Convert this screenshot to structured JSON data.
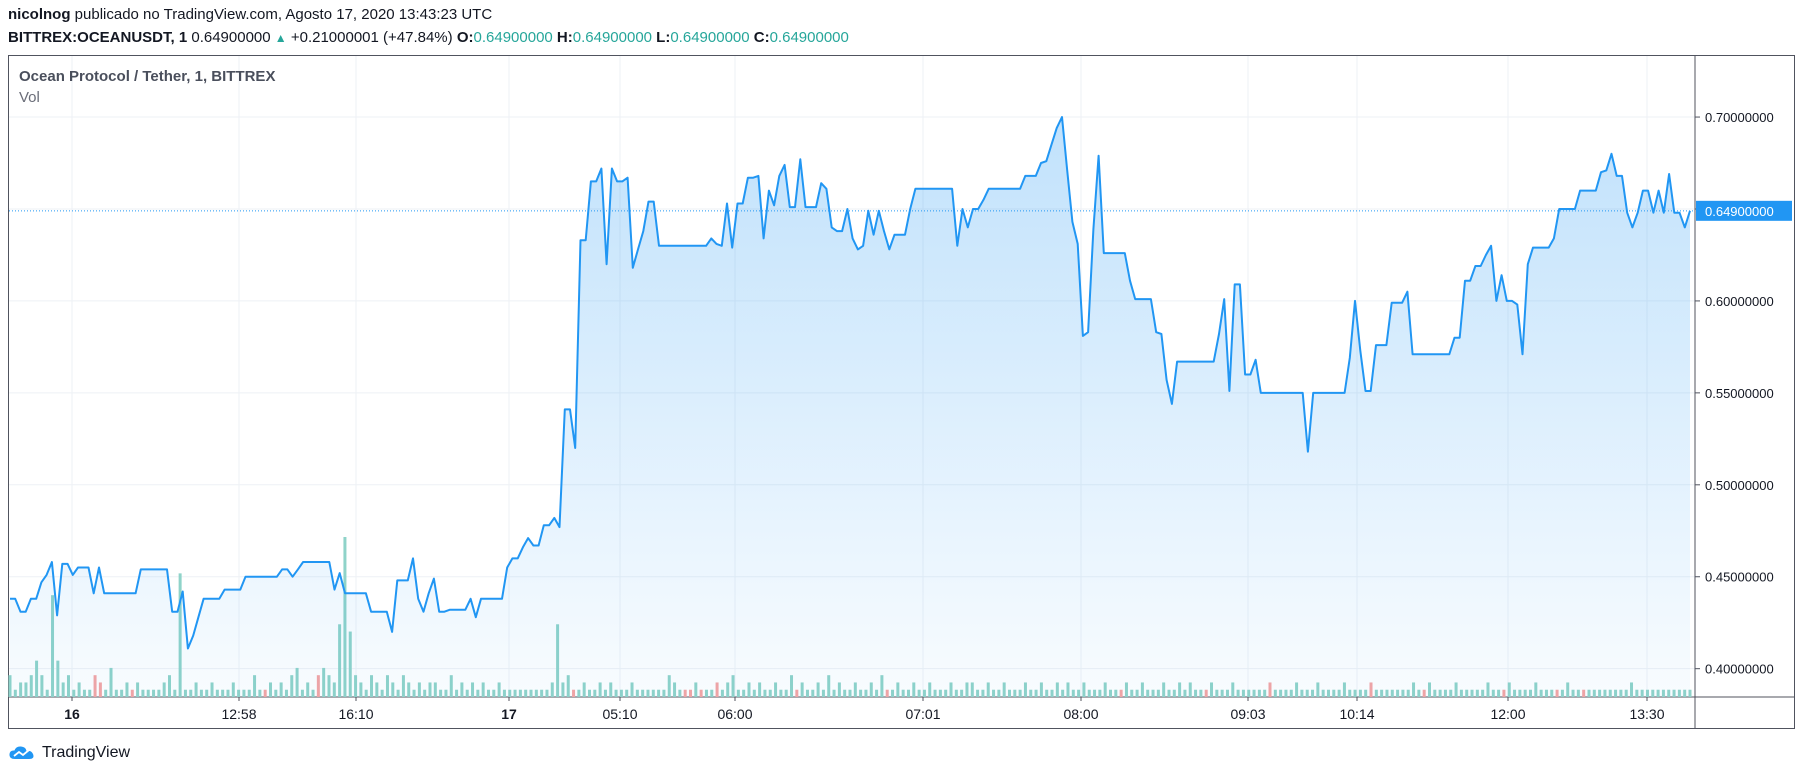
{
  "header": {
    "author": "nicolnog",
    "published_text": "publicado no TradingView.com, Agosto 17, 2020 13:43:23 UTC",
    "symbol": "BITTREX:OCEANUSDT, 1",
    "last": "0.64900000",
    "change": "+0.21000001 (+47.84%)",
    "o_label": "O:",
    "o_value": "0.64900000",
    "h_label": "H:",
    "h_value": "0.64900000",
    "l_label": "L:",
    "l_value": "0.64900000",
    "c_label": "C:",
    "c_value": "0.64900000"
  },
  "legend": {
    "title": "Ocean Protocol / Tether, 1, BITTREX",
    "vol": "Vol"
  },
  "footer": {
    "brand": "TradingView"
  },
  "colors": {
    "line": "#2196f3",
    "vol_up": "#8fd3c9",
    "vol_down": "#f4a4a4",
    "positive": "#26a69a"
  },
  "chart_data": {
    "type": "area",
    "price_label": "0.64900000",
    "ylim": [
      0.3846,
      0.7332
    ],
    "y_ticks": [
      "0.70000000",
      "0.65000000",
      "0.60000000",
      "0.55000000",
      "0.50000000",
      "0.45000000",
      "0.40000000"
    ],
    "x_ticks": [
      "16",
      "12:58",
      "16:10",
      "17",
      "05:10",
      "06:00",
      "07:01",
      "08:00",
      "09:03",
      "10:14",
      "12:00",
      "13:30"
    ],
    "series": [
      {
        "values": [
          0.438,
          0.438,
          0.431,
          0.431,
          0.438,
          0.438,
          0.447,
          0.451,
          0.458,
          0.429,
          0.457,
          0.457,
          0.451,
          0.455,
          0.455,
          0.455,
          0.441,
          0.455,
          0.441,
          0.441,
          0.441,
          0.441,
          0.441,
          0.441,
          0.441,
          0.454,
          0.454,
          0.454,
          0.454,
          0.454,
          0.454,
          0.431,
          0.431,
          0.442,
          0.411,
          0.418,
          0.428,
          0.438,
          0.438,
          0.438,
          0.438,
          0.443,
          0.443,
          0.443,
          0.443,
          0.45,
          0.45,
          0.45,
          0.45,
          0.45,
          0.45,
          0.45,
          0.454,
          0.454,
          0.45,
          0.454,
          0.458,
          0.458,
          0.458,
          0.458,
          0.458,
          0.458,
          0.443,
          0.452,
          0.441,
          0.441,
          0.441,
          0.441,
          0.441,
          0.431,
          0.431,
          0.431,
          0.431,
          0.42,
          0.448,
          0.448,
          0.448,
          0.46,
          0.438,
          0.431,
          0.441,
          0.449,
          0.431,
          0.431,
          0.432,
          0.432,
          0.432,
          0.432,
          0.438,
          0.428,
          0.438,
          0.438,
          0.438,
          0.438,
          0.438,
          0.455,
          0.46,
          0.46,
          0.466,
          0.471,
          0.467,
          0.467,
          0.478,
          0.478,
          0.482,
          0.477,
          0.541,
          0.541,
          0.52,
          0.633,
          0.633,
          0.665,
          0.665,
          0.672,
          0.62,
          0.672,
          0.665,
          0.665,
          0.667,
          0.618,
          0.628,
          0.638,
          0.654,
          0.654,
          0.63,
          0.63,
          0.63,
          0.63,
          0.63,
          0.63,
          0.63,
          0.63,
          0.63,
          0.63,
          0.634,
          0.631,
          0.63,
          0.653,
          0.629,
          0.653,
          0.653,
          0.667,
          0.667,
          0.668,
          0.634,
          0.66,
          0.652,
          0.668,
          0.674,
          0.651,
          0.651,
          0.677,
          0.651,
          0.651,
          0.651,
          0.664,
          0.661,
          0.64,
          0.638,
          0.638,
          0.65,
          0.634,
          0.628,
          0.63,
          0.649,
          0.636,
          0.649,
          0.638,
          0.628,
          0.636,
          0.636,
          0.636,
          0.65,
          0.661,
          0.661,
          0.661,
          0.661,
          0.661,
          0.661,
          0.661,
          0.661,
          0.63,
          0.65,
          0.64,
          0.65,
          0.65,
          0.655,
          0.661,
          0.661,
          0.661,
          0.661,
          0.661,
          0.661,
          0.661,
          0.668,
          0.668,
          0.668,
          0.675,
          0.676,
          0.685,
          0.694,
          0.7,
          0.671,
          0.643,
          0.631,
          0.581,
          0.583,
          0.639,
          0.679,
          0.626,
          0.626,
          0.626,
          0.626,
          0.626,
          0.611,
          0.601,
          0.601,
          0.601,
          0.601,
          0.583,
          0.582,
          0.557,
          0.544,
          0.567,
          0.567,
          0.567,
          0.567,
          0.567,
          0.567,
          0.567,
          0.567,
          0.582,
          0.601,
          0.551,
          0.609,
          0.609,
          0.56,
          0.56,
          0.568,
          0.55,
          0.55,
          0.55,
          0.55,
          0.55,
          0.55,
          0.55,
          0.55,
          0.55,
          0.518,
          0.55,
          0.55,
          0.55,
          0.55,
          0.55,
          0.55,
          0.55,
          0.569,
          0.6,
          0.573,
          0.551,
          0.551,
          0.576,
          0.576,
          0.576,
          0.599,
          0.599,
          0.599,
          0.605,
          0.571,
          0.571,
          0.571,
          0.571,
          0.571,
          0.571,
          0.571,
          0.571,
          0.58,
          0.58,
          0.611,
          0.611,
          0.619,
          0.619,
          0.625,
          0.63,
          0.6,
          0.614,
          0.6,
          0.6,
          0.598,
          0.571,
          0.62,
          0.629,
          0.629,
          0.629,
          0.629,
          0.634,
          0.65,
          0.65,
          0.65,
          0.65,
          0.66,
          0.66,
          0.66,
          0.66,
          0.67,
          0.671,
          0.68,
          0.668,
          0.668,
          0.648,
          0.64,
          0.648,
          0.66,
          0.66,
          0.648,
          0.66,
          0.648,
          0.669,
          0.648,
          0.648,
          0.64,
          0.649
        ]
      }
    ],
    "volume": {
      "values": [
        0.3,
        0.1,
        0.2,
        0.2,
        0.3,
        0.5,
        0.3,
        0.1,
        1.4,
        0.5,
        0.2,
        0.3,
        0.1,
        0.2,
        0.1,
        0.1,
        0.3,
        0.2,
        0.1,
        0.4,
        0.1,
        0.1,
        0.2,
        0.1,
        0.2,
        0.1,
        0.1,
        0.1,
        0.1,
        0.2,
        0.3,
        0.1,
        1.7,
        0.1,
        0.1,
        0.2,
        0.1,
        0.1,
        0.2,
        0.1,
        0.1,
        0.1,
        0.2,
        0.1,
        0.1,
        0.1,
        0.3,
        0.1,
        0.1,
        0.2,
        0.1,
        0.2,
        0.1,
        0.3,
        0.4,
        0.1,
        0.2,
        0.1,
        0.3,
        0.4,
        0.3,
        0.2,
        1.0,
        2.2,
        0.9,
        0.3,
        0.2,
        0.1,
        0.3,
        0.2,
        0.1,
        0.3,
        0.2,
        0.1,
        0.3,
        0.2,
        0.1,
        0.2,
        0.1,
        0.2,
        0.2,
        0.1,
        0.1,
        0.3,
        0.1,
        0.2,
        0.1,
        0.2,
        0.1,
        0.2,
        0.1,
        0.1,
        0.2,
        0.1,
        0.1,
        0.1,
        0.1,
        0.1,
        0.1,
        0.1,
        0.1,
        0.1,
        0.2,
        1.0,
        0.2,
        0.3,
        0.1,
        0.1,
        0.2,
        0.1,
        0.1,
        0.2,
        0.1,
        0.2,
        0.1,
        0.1,
        0.1,
        0.2,
        0.1,
        0.1,
        0.1,
        0.1,
        0.1,
        0.1,
        0.3,
        0.2,
        0.1,
        0.1,
        0.1,
        0.2,
        0.1,
        0.1,
        0.1,
        0.2,
        0.1,
        0.2,
        0.3,
        0.1,
        0.1,
        0.2,
        0.1,
        0.2,
        0.1,
        0.1,
        0.2,
        0.1,
        0.1,
        0.3,
        0.1,
        0.2,
        0.1,
        0.1,
        0.2,
        0.1,
        0.3,
        0.1,
        0.2,
        0.1,
        0.1,
        0.2,
        0.1,
        0.1,
        0.2,
        0.1,
        0.3,
        0.1,
        0.1,
        0.2,
        0.1,
        0.1,
        0.2,
        0.1,
        0.1,
        0.2,
        0.1,
        0.1,
        0.1,
        0.2,
        0.1,
        0.1,
        0.2,
        0.2,
        0.1,
        0.1,
        0.2,
        0.1,
        0.1,
        0.2,
        0.1,
        0.1,
        0.1,
        0.2,
        0.1,
        0.1,
        0.2,
        0.1,
        0.1,
        0.2,
        0.1,
        0.2,
        0.1,
        0.1,
        0.2,
        0.1,
        0.1,
        0.1,
        0.2,
        0.1,
        0.1,
        0.1,
        0.2,
        0.1,
        0.1,
        0.2,
        0.1,
        0.1,
        0.1,
        0.2,
        0.1,
        0.1,
        0.2,
        0.1,
        0.2,
        0.1,
        0.1,
        0.1,
        0.2,
        0.1,
        0.1,
        0.1,
        0.2,
        0.1,
        0.1,
        0.1,
        0.1,
        0.1,
        0.1,
        0.2,
        0.1,
        0.1,
        0.1,
        0.1,
        0.2,
        0.1,
        0.1,
        0.1,
        0.2,
        0.1,
        0.1,
        0.1,
        0.1,
        0.2,
        0.1,
        0.1,
        0.1,
        0.1,
        0.2,
        0.1,
        0.1,
        0.1,
        0.1,
        0.1,
        0.1,
        0.1,
        0.2,
        0.1,
        0.1,
        0.2,
        0.1,
        0.1,
        0.1,
        0.1,
        0.2,
        0.1,
        0.1,
        0.1,
        0.1,
        0.1,
        0.2,
        0.1,
        0.1,
        0.1,
        0.2,
        0.1,
        0.1,
        0.1,
        0.1,
        0.2,
        0.1,
        0.1,
        0.1,
        0.1,
        0.1,
        0.2,
        0.1,
        0.1,
        0.1,
        0.1,
        0.1,
        0.1,
        0.1,
        0.1,
        0.1,
        0.1,
        0.1,
        0.2,
        0.1,
        0.1,
        0.1,
        0.1,
        0.1,
        0.1,
        0.1,
        0.1,
        0.1,
        0.1,
        0.1
      ],
      "down": []
    }
  }
}
